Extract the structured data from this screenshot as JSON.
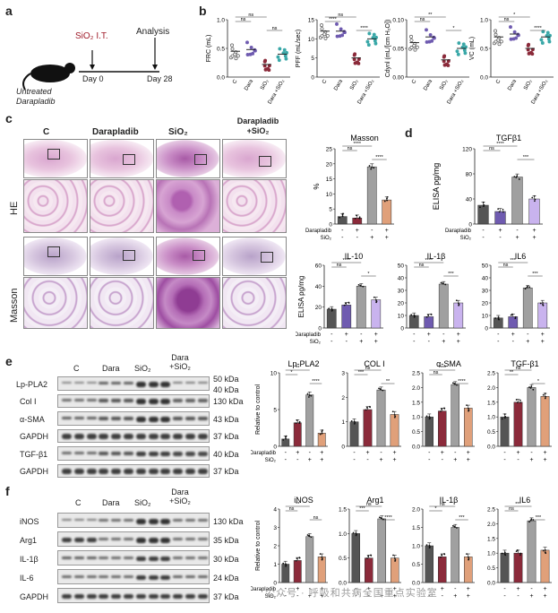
{
  "panel_labels": {
    "a": "a",
    "b": "b",
    "c": "c",
    "d": "d",
    "e": "e",
    "f": "f"
  },
  "panel_a": {
    "treatment": "SiO₂ I.T.",
    "analysis": "Analysis",
    "day0": "Day 0",
    "day28": "Day 28",
    "note_line1": "Untreated",
    "note_line2": "Darapladib"
  },
  "colors": {
    "control": "#555555",
    "darapladib": "#8b2a3a",
    "sio2": "#a0a0a0",
    "dara_sio2": "#e0a07a",
    "dara_purple": "#6f5bb0",
    "combo_purple": "#c9b3ee",
    "panel_b_teal": "#3aa8a8"
  },
  "group_labels_short": [
    "C",
    "Dara",
    "SiO₂",
    "Dara +SiO₂"
  ],
  "panel_c": {
    "col_headers": [
      "C",
      "Darapladib",
      "SiO₂",
      "Darapladib +SiO₂"
    ],
    "row_labels": [
      "HE",
      "Masson"
    ]
  },
  "panel_e": {
    "col_headers": [
      "C",
      "Dara",
      "SiO₂",
      "Dara +SiO₂"
    ],
    "blot_rows": [
      {
        "label": "Lp-PLA2",
        "kda": "50 kDa",
        "kda2": "40 kDa"
      },
      {
        "label": "Col I",
        "kda": "130 kDa"
      },
      {
        "label": "α-SMA",
        "kda": "43 kDa"
      },
      {
        "label": "GAPDH",
        "kda": "37 kDa"
      },
      {
        "label": "TGF-β1",
        "kda": "40 kDa"
      },
      {
        "label": "GAPDH",
        "kda": "37 kDa"
      }
    ]
  },
  "panel_f": {
    "col_headers": [
      "C",
      "Dara",
      "SiO₂",
      "Dara +SiO₂"
    ],
    "blot_rows": [
      {
        "label": "iNOS",
        "kda": "130 kDa"
      },
      {
        "label": "Arg1",
        "kda": "35 kDa"
      },
      {
        "label": "IL-1β",
        "kda": "30 kDa"
      },
      {
        "label": "IL-6",
        "kda": "24 kDa"
      },
      {
        "label": "GAPDH",
        "kda": "37 kDa"
      }
    ]
  },
  "treat_rows": {
    "dara_label": "Darapladib",
    "sio2_label": "SiO₂",
    "dara_signs": [
      "-",
      "+",
      "-",
      "+"
    ],
    "sio2_signs": [
      "-",
      "-",
      "+",
      "+"
    ]
  },
  "watermark": "公众号 · 呼吸和共病全国重点实验室",
  "chart_data": [
    {
      "id": "b1",
      "type": "scatter",
      "ylabel": "FRC (mL)",
      "categories": [
        "C",
        "Dara",
        "SiO₂",
        "Dara +SiO₂"
      ],
      "values": [
        0.45,
        0.48,
        0.22,
        0.4
      ],
      "ylim": [
        0,
        1.0
      ],
      "yticks": [
        "0.0",
        "0.5",
        "1.0"
      ],
      "sig": [
        "ns",
        "ns",
        "ns"
      ]
    },
    {
      "id": "b2",
      "type": "scatter",
      "ylabel": "PFF (mL/sec)",
      "categories": [
        "C",
        "Dara",
        "SiO₂",
        "Dara +SiO₂"
      ],
      "values": [
        12,
        12,
        5,
        10
      ],
      "ylim": [
        0,
        15
      ],
      "yticks": [
        "0",
        "5",
        "10",
        "15"
      ],
      "sig": [
        "****",
        "ns",
        "****"
      ]
    },
    {
      "id": "b3",
      "type": "scatter",
      "ylabel": "Cdynl (mL/[cm H₂O])",
      "categories": [
        "C",
        "Dara",
        "SiO₂",
        "Dara +SiO₂"
      ],
      "values": [
        0.06,
        0.07,
        0.03,
        0.05
      ],
      "ylim": [
        0,
        0.1
      ],
      "yticks": [
        "0.00",
        "0.05",
        "0.10"
      ],
      "sig": [
        "ns",
        "**",
        "*"
      ]
    },
    {
      "id": "b4",
      "type": "scatter",
      "ylabel": "VC (mL)",
      "categories": [
        "C",
        "Dara",
        "SiO₂",
        "Dara +SiO₂"
      ],
      "values": [
        0.7,
        0.75,
        0.5,
        0.7
      ],
      "ylim": [
        0,
        1.0
      ],
      "yticks": [
        "0.0",
        "0.5",
        "1.0"
      ],
      "sig": [
        "ns",
        "*",
        "****"
      ]
    },
    {
      "id": "c_masson",
      "type": "bar",
      "title": "Masson",
      "ylabel": "%",
      "categories": [
        "C",
        "Dara",
        "SiO₂",
        "Dara +SiO₂"
      ],
      "values": [
        2.5,
        2.0,
        19,
        8
      ],
      "ylim": [
        0,
        25
      ],
      "yticks": [
        "0",
        "5",
        "10",
        "15",
        "20",
        "25"
      ],
      "sig": [
        "ns",
        "****",
        "****"
      ]
    },
    {
      "id": "d_tgfb1",
      "type": "bar",
      "title": "TGFβ1",
      "ylabel": "ELISA pg/mg",
      "categories": [
        "C",
        "Dara",
        "SiO₂",
        "Dara +SiO₂"
      ],
      "values": [
        30,
        20,
        75,
        40
      ],
      "ylim": [
        0,
        120
      ],
      "yticks": [
        "0",
        "40",
        "80",
        "120"
      ],
      "sig": [
        "ns",
        "****",
        "***"
      ]
    },
    {
      "id": "d_il10",
      "type": "bar",
      "title": "IL-10",
      "ylabel": "ELISA pg/mg",
      "categories": [
        "C",
        "Dara",
        "SiO₂",
        "Dara +SiO₂"
      ],
      "values": [
        18,
        22,
        40,
        27
      ],
      "ylim": [
        0,
        60
      ],
      "yticks": [
        "0",
        "20",
        "40",
        "60"
      ],
      "sig": [
        "ns",
        "****",
        "*"
      ]
    },
    {
      "id": "d_il1b",
      "type": "bar",
      "title": "IL-1β",
      "categories": [
        "C",
        "Dara",
        "SiO₂",
        "Dara +SiO₂"
      ],
      "values": [
        10,
        9,
        35,
        20
      ],
      "ylim": [
        0,
        50
      ],
      "yticks": [
        "0",
        "10",
        "20",
        "30",
        "40",
        "50"
      ],
      "sig": [
        "ns",
        "****",
        "***"
      ]
    },
    {
      "id": "d_il6",
      "type": "bar",
      "title": "IL6",
      "categories": [
        "C",
        "Dara",
        "SiO₂",
        "Dara +SiO₂"
      ],
      "values": [
        8,
        9,
        32,
        20
      ],
      "ylim": [
        0,
        50
      ],
      "yticks": [
        "0",
        "10",
        "20",
        "30",
        "40",
        "50"
      ],
      "sig": [
        "ns",
        "***",
        "***"
      ]
    },
    {
      "id": "e_lppla2",
      "type": "bar",
      "title": "Lp-PLA2",
      "ylabel": "Relative to control",
      "categories": [
        "C",
        "Dara",
        "SiO₂",
        "Dara +SiO₂"
      ],
      "values": [
        1.0,
        3.2,
        7.0,
        1.8
      ],
      "ylim": [
        0,
        10
      ],
      "yticks": [
        "0",
        "5",
        "10"
      ],
      "sig": [
        "*",
        "**",
        "****"
      ]
    },
    {
      "id": "e_col1",
      "type": "bar",
      "title": "COL I",
      "categories": [
        "C",
        "Dara",
        "SiO₂",
        "Dara +SiO₂"
      ],
      "values": [
        1.0,
        1.5,
        2.3,
        1.3
      ],
      "ylim": [
        0,
        3
      ],
      "yticks": [
        "0",
        "1",
        "2",
        "3"
      ],
      "sig": [
        "***",
        "ns",
        "**"
      ]
    },
    {
      "id": "e_asma",
      "type": "bar",
      "title": "α-SMA",
      "categories": [
        "C",
        "Dara",
        "SiO₂",
        "Dara +SiO₂"
      ],
      "values": [
        1.0,
        1.2,
        2.1,
        1.3
      ],
      "ylim": [
        0,
        2.5
      ],
      "yticks": [
        "0.0",
        "0.5",
        "1.0",
        "1.5",
        "2.0",
        "2.5"
      ],
      "sig": [
        "ns",
        "****",
        "****"
      ]
    },
    {
      "id": "e_tgfb1",
      "type": "bar",
      "title": "TGF-β1",
      "categories": [
        "C",
        "Dara",
        "SiO₂",
        "Dara +SiO₂"
      ],
      "values": [
        1.0,
        1.5,
        2.0,
        1.7
      ],
      "ylim": [
        0,
        2.5
      ],
      "yticks": [
        "0.0",
        "0.5",
        "1.0",
        "1.5",
        "2.0",
        "2.5"
      ],
      "sig": [
        "**",
        "ns",
        "*"
      ]
    },
    {
      "id": "f_inos",
      "type": "bar",
      "title": "iNOS",
      "ylabel": "Relative to control",
      "categories": [
        "C",
        "Dara",
        "SiO₂",
        "Dara +SiO₂"
      ],
      "values": [
        1.0,
        1.2,
        2.5,
        1.4
      ],
      "ylim": [
        0,
        4
      ],
      "yticks": [
        "0",
        "1",
        "2",
        "3",
        "4"
      ],
      "sig": [
        "ns",
        "**",
        "ns"
      ]
    },
    {
      "id": "f_arg1",
      "type": "bar",
      "title": "Arg1",
      "categories": [
        "C",
        "Dara",
        "SiO₂",
        "Dara +SiO₂"
      ],
      "values": [
        1.0,
        0.5,
        1.3,
        0.5
      ],
      "ylim": [
        0,
        1.5
      ],
      "yticks": [
        "0.0",
        "0.5",
        "1.0",
        "1.5"
      ],
      "sig": [
        "***",
        "ns",
        "****"
      ]
    },
    {
      "id": "f_il1b",
      "type": "bar",
      "title": "IL-1β",
      "categories": [
        "C",
        "Dara",
        "SiO₂",
        "Dara +SiO₂"
      ],
      "values": [
        1.0,
        0.7,
        1.5,
        0.7
      ],
      "ylim": [
        0,
        2.0
      ],
      "yticks": [
        "0.0",
        "0.5",
        "1.0",
        "1.5",
        "2.0"
      ],
      "sig": [
        "*",
        "ns",
        "***"
      ]
    },
    {
      "id": "f_il6",
      "type": "bar",
      "title": "IL6",
      "categories": [
        "C",
        "Dara",
        "SiO₂",
        "Dara +SiO₂"
      ],
      "values": [
        1.0,
        1.0,
        2.1,
        1.1
      ],
      "ylim": [
        0,
        2.5
      ],
      "yticks": [
        "0.0",
        "0.5",
        "1.0",
        "1.5",
        "2.0",
        "2.5"
      ],
      "sig": [
        "ns",
        "***",
        "***"
      ]
    }
  ]
}
